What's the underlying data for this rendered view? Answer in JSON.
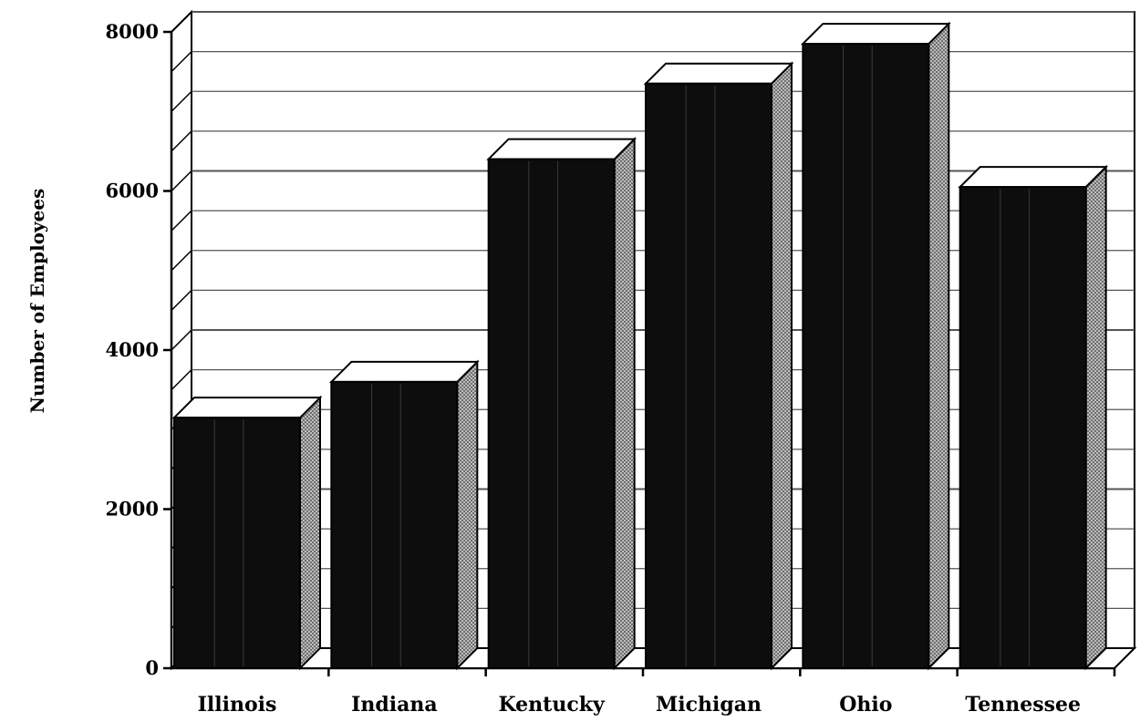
{
  "chart_data": {
    "type": "bar",
    "title": "",
    "xlabel": "",
    "ylabel": "Number of Employees",
    "categories": [
      "Illinois",
      "Indiana",
      "Kentucky",
      "Michigan",
      "Ohio",
      "Tennessee"
    ],
    "values": [
      3150,
      3600,
      6400,
      7350,
      7850,
      6050
    ],
    "ylim": [
      0,
      8000
    ],
    "yticks": [
      0,
      2000,
      4000,
      6000,
      8000
    ],
    "ytick_labels": [
      "0",
      "2000",
      "4000",
      "6000",
      "8000"
    ],
    "grid": true,
    "legend": "none",
    "style": "3d",
    "colors": {
      "bar_front": "#0d0d0d",
      "bar_side": "#9a9a9a",
      "bar_top": "#ffffff",
      "grid": "#555555"
    }
  }
}
